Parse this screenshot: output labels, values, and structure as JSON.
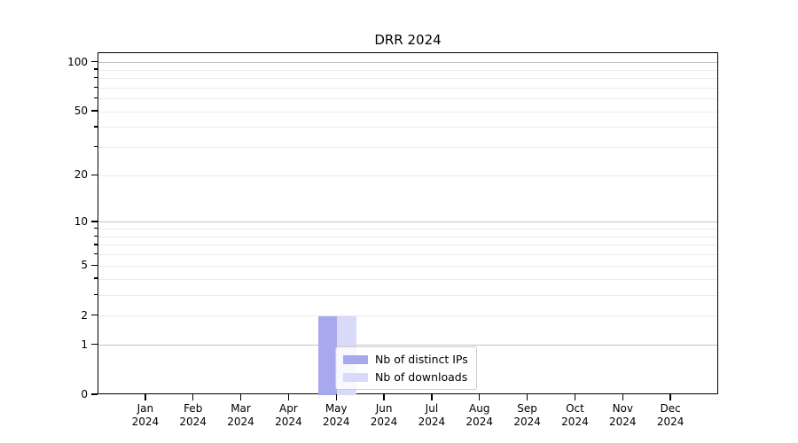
{
  "chart_data": {
    "type": "bar",
    "title": "DRR 2024",
    "xlabel": "",
    "ylabel": "",
    "categories": [
      "Jan",
      "Feb",
      "Mar",
      "Apr",
      "May",
      "Jun",
      "Jul",
      "Aug",
      "Sep",
      "Oct",
      "Nov",
      "Dec"
    ],
    "x_tick_year": "2024",
    "series": [
      {
        "name": "Nb of distinct IPs",
        "color": "#a8a8ee",
        "values": [
          0,
          0,
          0,
          0,
          2,
          0,
          0,
          0,
          0,
          0,
          0,
          0
        ]
      },
      {
        "name": "Nb of downloads",
        "color": "#d9d9f8",
        "values": [
          0,
          0,
          0,
          0,
          2,
          0,
          0,
          0,
          0,
          0,
          0,
          0
        ]
      }
    ],
    "yscale": "log1p",
    "ylim": [
      0,
      114
    ],
    "yticks": [
      0,
      1,
      2,
      5,
      10,
      20,
      50,
      100
    ],
    "y_major_gridlines": [
      1,
      10,
      100
    ],
    "y_minor_gridlines": [
      3,
      4,
      6,
      7,
      8,
      9,
      30,
      40,
      60,
      70,
      80,
      90
    ],
    "grid": "on",
    "legend_position": "lower center (inside plot)",
    "background_color": "#ffffff",
    "spine_color": "#000000"
  }
}
